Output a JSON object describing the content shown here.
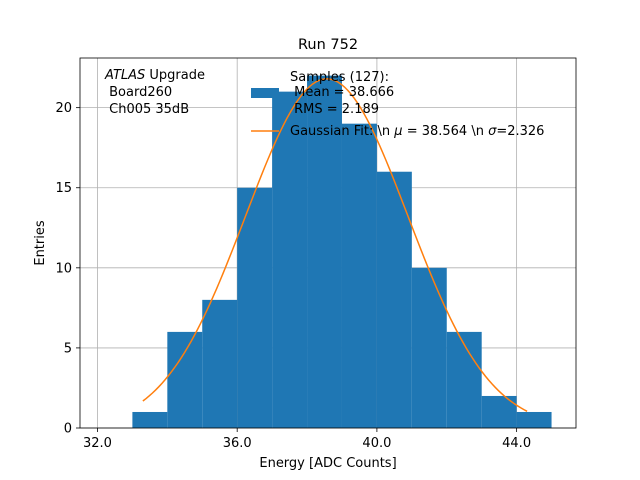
{
  "chart_data": {
    "type": "bar",
    "title": "Run 752",
    "xlabel": "Energy [ADC Counts]",
    "ylabel": "Entries",
    "xlim": [
      31.5,
      45.7
    ],
    "ylim": [
      0,
      23.1
    ],
    "grid": true,
    "xticks": [
      32.0,
      36.0,
      40.0,
      44.0
    ],
    "xtick_labels": [
      "32.0",
      "36.0",
      "40.0",
      "44.0"
    ],
    "yticks": [
      0,
      5,
      10,
      15,
      20
    ],
    "ytick_labels": [
      "0",
      "5",
      "10",
      "15",
      "20"
    ],
    "annotation": {
      "italic": "ATLAS",
      "rest": " Upgrade",
      "line2": " Board260",
      "line3": " Ch005 35dB"
    },
    "histogram": {
      "name_lines": [
        "Samples (127):",
        " Mean = 38.666",
        " RMS = 2.189"
      ],
      "color": "#1f77b4",
      "bins": [
        {
          "x0": 33,
          "x1": 34,
          "count": 1
        },
        {
          "x0": 34,
          "x1": 35,
          "count": 6
        },
        {
          "x0": 35,
          "x1": 36,
          "count": 8
        },
        {
          "x0": 36,
          "x1": 37,
          "count": 15
        },
        {
          "x0": 37,
          "x1": 38,
          "count": 21
        },
        {
          "x0": 38,
          "x1": 39,
          "count": 22
        },
        {
          "x0": 39,
          "x1": 40,
          "count": 19
        },
        {
          "x0": 40,
          "x1": 41,
          "count": 16
        },
        {
          "x0": 41,
          "x1": 42,
          "count": 10
        },
        {
          "x0": 42,
          "x1": 43,
          "count": 6
        },
        {
          "x0": 43,
          "x1": 44,
          "count": 2
        },
        {
          "x0": 44,
          "x1": 45,
          "count": 1
        }
      ]
    },
    "fit": {
      "name": "Gaussian Fit: \\n μ = 38.564 \\n σ=2.326",
      "label_prefix": "Gaussian Fit: \\n ",
      "mu_symbol": "μ",
      "mu_text": " = 38.564 \\n ",
      "sigma_symbol": "σ",
      "sigma_text": "=2.326",
      "color": "#ff7f0e",
      "mu": 38.564,
      "sigma": 2.326,
      "amplitude": 21.8,
      "x_range": [
        33.3,
        44.3
      ]
    },
    "legend_position": "top-right"
  }
}
